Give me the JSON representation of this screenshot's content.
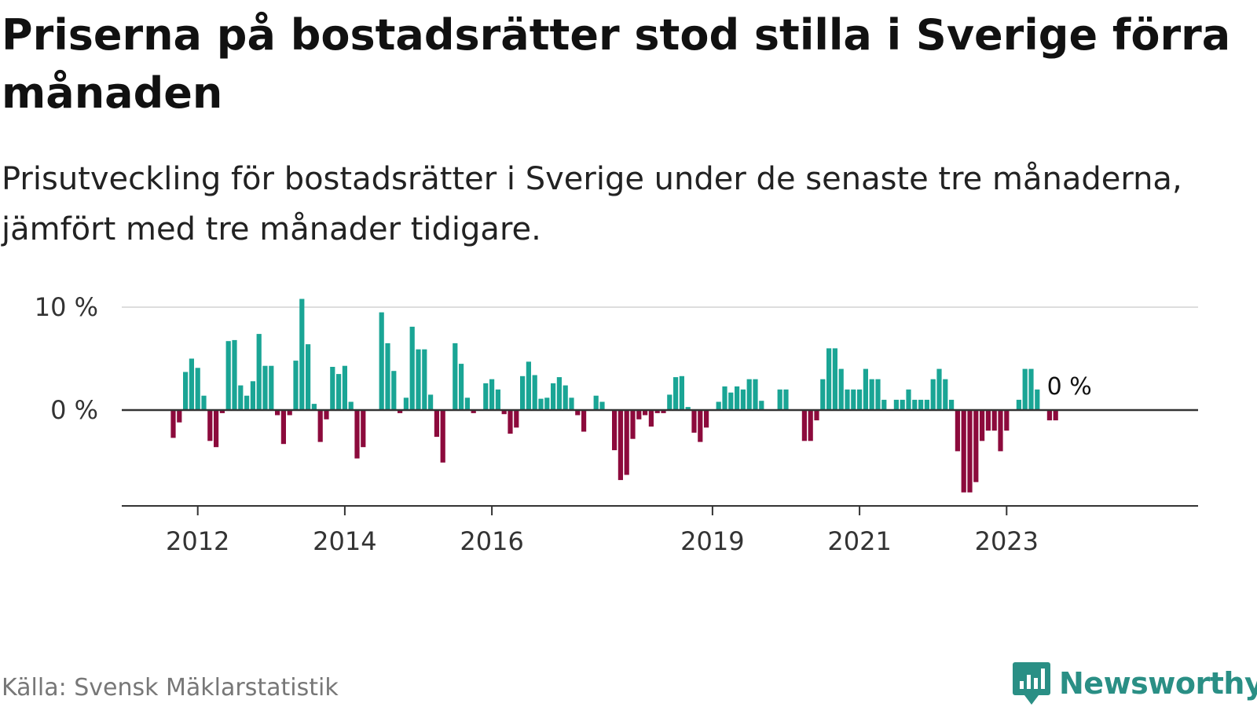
{
  "title": "Priserna på bostadsrätter stod stilla i Sverige förra månaden",
  "subtitle": "Prisutveckling för bostadsrätter i Sverige under de senaste tre månaderna, jämfört med tre månader tidigare.",
  "source": "Källa: Svensk Mäklarstatistik",
  "brand": "Newsworthy",
  "colors": {
    "positive": "#1aa595",
    "negative": "#8c0a3c",
    "brand": "#2a8f85",
    "grid": "#dddddd",
    "axis": "#333333"
  },
  "chart_data": {
    "type": "bar",
    "title": "",
    "xlabel": "",
    "ylabel": "",
    "ylim": [
      -9,
      10.5
    ],
    "y_ticks": [
      {
        "value": 0,
        "label": "0 %"
      },
      {
        "value": 10,
        "label": "10 %"
      }
    ],
    "x_ticks": [
      {
        "value": "2012-01",
        "label": "2012"
      },
      {
        "value": "2014-01",
        "label": "2014"
      },
      {
        "value": "2016-01",
        "label": "2016"
      },
      {
        "value": "2019-01",
        "label": "2019"
      },
      {
        "value": "2021-01",
        "label": "2021"
      },
      {
        "value": "2023-01",
        "label": "2023"
      }
    ],
    "grid": true,
    "end_label": "0 %",
    "start_month": "2011-01",
    "values": [
      0,
      0,
      0,
      0,
      0,
      0,
      0,
      0,
      -2.7,
      -1.2,
      3.7,
      5.0,
      4.1,
      1.4,
      -3.0,
      -3.6,
      -0.3,
      6.7,
      6.8,
      2.4,
      1.4,
      2.8,
      7.4,
      4.3,
      4.3,
      -0.5,
      -3.3,
      -0.5,
      4.8,
      10.8,
      6.4,
      0.6,
      -3.1,
      -0.9,
      4.2,
      3.5,
      4.3,
      0.8,
      -4.7,
      -3.6,
      0,
      0,
      9.5,
      6.5,
      3.8,
      -0.3,
      1.2,
      8.1,
      5.9,
      5.9,
      1.5,
      -2.6,
      -5.1,
      0,
      6.5,
      4.5,
      1.2,
      -0.3,
      0,
      2.6,
      3.0,
      2.0,
      -0.4,
      -2.3,
      -1.7,
      3.3,
      4.7,
      3.4,
      1.1,
      1.2,
      2.6,
      3.2,
      2.4,
      1.2,
      -0.5,
      -2.1,
      0,
      1.4,
      0.8,
      0,
      -3.9,
      -6.8,
      -6.3,
      -2.8,
      -0.9,
      -0.5,
      -1.6,
      -0.3,
      -0.3,
      1.5,
      3.2,
      3.3,
      0.3,
      -2.2,
      -3.1,
      -1.7,
      0,
      0.8,
      2.3,
      1.7,
      2.3,
      2.0,
      3.0,
      3.0,
      0.9,
      0,
      0,
      2.0,
      2.0,
      0,
      0,
      -3.0,
      -3.0,
      -1.0,
      3.0,
      6.0,
      6.0,
      4.0,
      2.0,
      2.0,
      2.0,
      4.0,
      3.0,
      3.0,
      1.0,
      0,
      1.0,
      1.0,
      2.0,
      1.0,
      1.0,
      1.0,
      3.0,
      4.0,
      3.0,
      1.0,
      -4.0,
      -8.0,
      -8.0,
      -7.0,
      -3.0,
      -2.0,
      -2.0,
      -4.0,
      -2.0,
      0,
      1.0,
      4.0,
      4.0,
      2.0,
      0,
      -1.0,
      -1.0
    ]
  }
}
